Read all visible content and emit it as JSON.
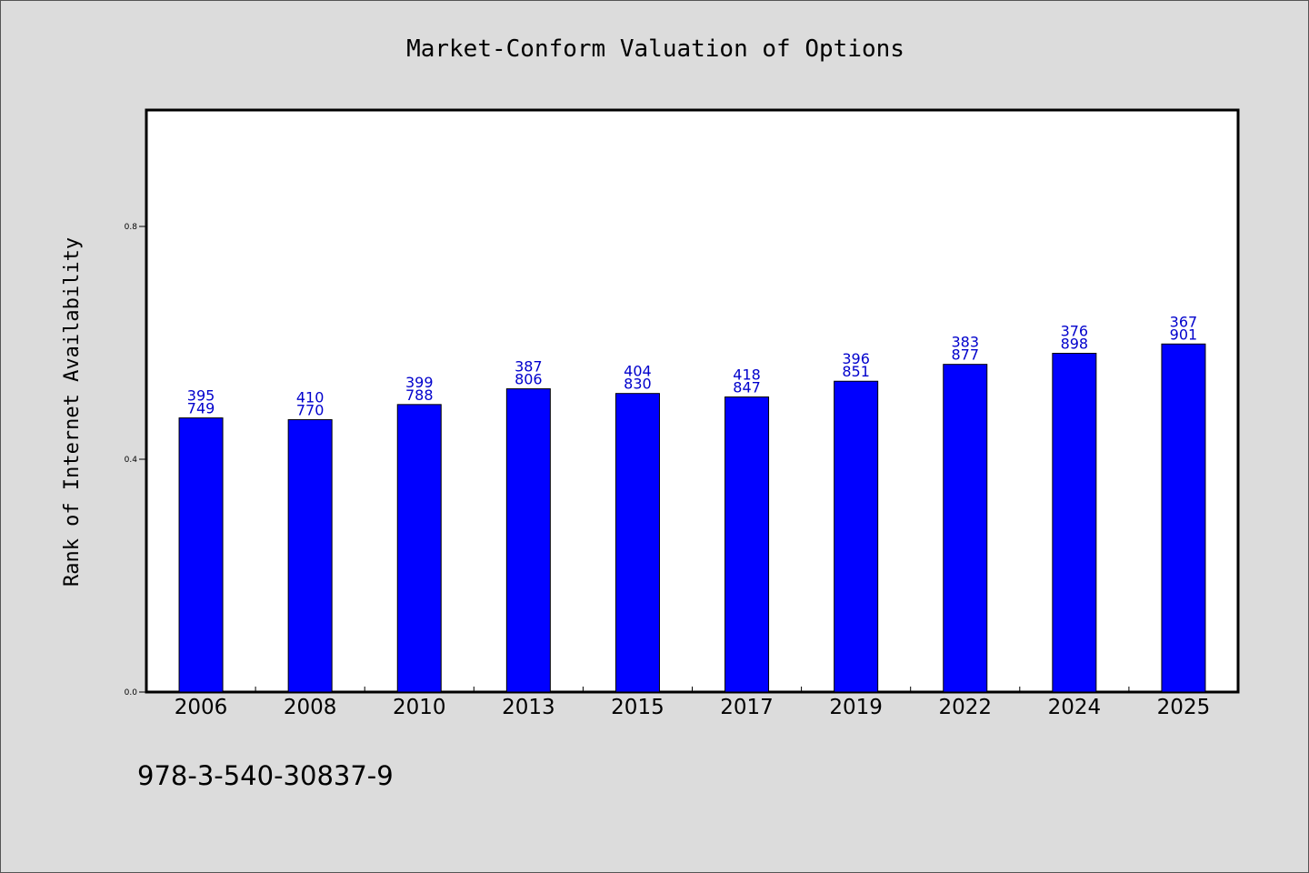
{
  "chart_data": {
    "type": "bar",
    "title": "Market-Conform Valuation of Options",
    "ylabel": "Rank of Internet Availability",
    "xlabel": "",
    "categories": [
      "2006",
      "2008",
      "2010",
      "2013",
      "2015",
      "2017",
      "2019",
      "2022",
      "2024",
      "2025"
    ],
    "values": [
      0.471,
      0.468,
      0.494,
      0.521,
      0.513,
      0.507,
      0.534,
      0.563,
      0.582,
      0.598
    ],
    "data_labels_top": [
      "395",
      "410",
      "399",
      "387",
      "404",
      "418",
      "396",
      "383",
      "376",
      "367"
    ],
    "data_labels_bottom": [
      "749",
      "770",
      "788",
      "806",
      "830",
      "847",
      "851",
      "877",
      "898",
      "901"
    ],
    "yticks": [
      0.0,
      0.4,
      0.8
    ],
    "ytick_labels": [
      "0.0",
      "0.4",
      "0.8"
    ],
    "ylim": [
      0.0,
      1.0
    ],
    "grid": false,
    "bar_color": "#0000ff",
    "label_color": "#0000cc"
  },
  "footer": {
    "isbn": "978-3-540-30837-9"
  }
}
